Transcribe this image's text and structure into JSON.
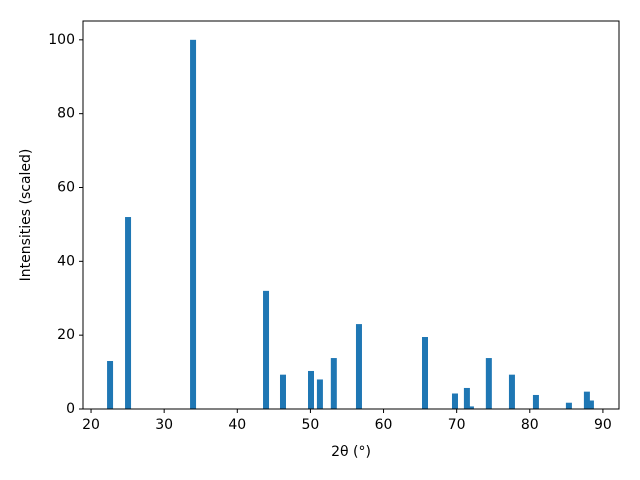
{
  "chart_data": {
    "type": "bar",
    "x_label": "2θ (°)",
    "y_label": "Intensities (scaled)",
    "x": [
      22.6,
      25.06,
      33.95,
      43.93,
      46.25,
      50.08,
      51.3,
      53.2,
      56.64,
      65.67,
      69.77,
      71.4,
      71.95,
      74.4,
      77.56,
      80.84,
      85.35,
      87.81,
      88.36
    ],
    "values": [
      13,
      52,
      100,
      32,
      9.3,
      10.3,
      8,
      13.8,
      23,
      19.5,
      4.2,
      5.7,
      0.7,
      13.8,
      9.3,
      3.8,
      1.7,
      4.7,
      2.3
    ],
    "color": "#1f77b4",
    "xlim": [
      18.9,
      92.2
    ],
    "xticks": [
      20,
      30,
      40,
      50,
      60,
      70,
      80,
      90
    ],
    "ylim": [
      0,
      105.1
    ],
    "yticks": [
      0,
      20,
      40,
      60,
      80,
      100
    ]
  }
}
